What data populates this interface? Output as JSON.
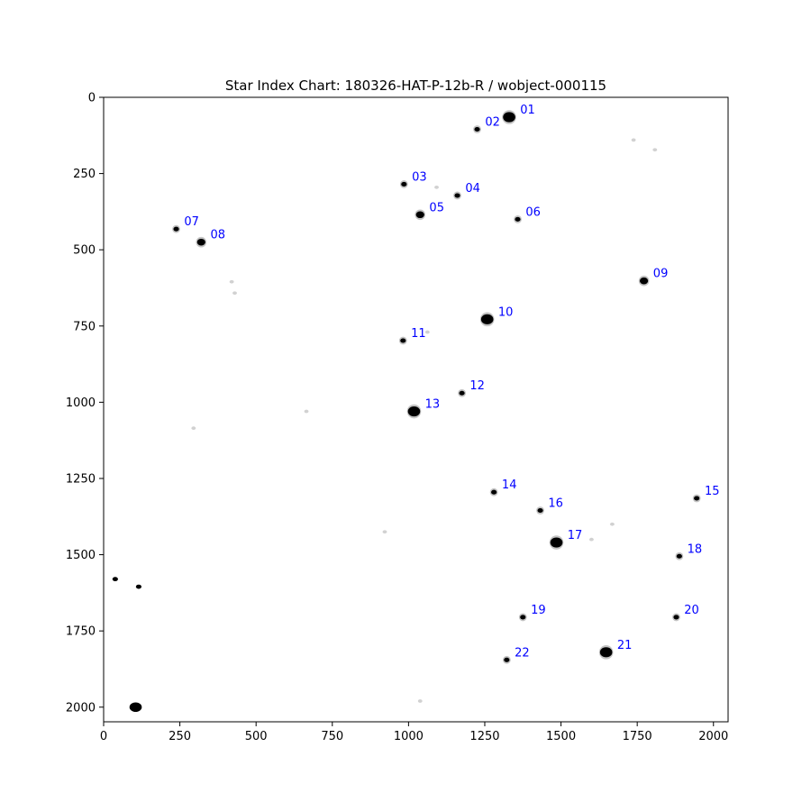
{
  "chart_data": {
    "type": "scatter",
    "title": "Star Index Chart: 180326-HAT-P-12b-R / wobject-000115",
    "xlabel": "",
    "ylabel": "",
    "xlim": [
      0,
      2048
    ],
    "ylim": [
      2048,
      0
    ],
    "y_inverted": true,
    "grid": false,
    "colors": {
      "label": "#0000ff",
      "star": "#000000",
      "background": "#ffffff",
      "faint": "#9a9a9a"
    },
    "x_ticks": [
      0,
      250,
      500,
      750,
      1000,
      1250,
      1500,
      1750,
      2000
    ],
    "y_ticks": [
      0,
      250,
      500,
      750,
      1000,
      1250,
      1500,
      1750,
      2000
    ],
    "x_tick_labels": [
      "0",
      "250",
      "500",
      "750",
      "1000",
      "1250",
      "1500",
      "1750",
      "2000"
    ],
    "y_tick_labels": [
      "0",
      "250",
      "500",
      "750",
      "1000",
      "1250",
      "1500",
      "1750",
      "2000"
    ],
    "stars": [
      {
        "label": "01",
        "x": 1330,
        "y": 65,
        "mag": 3
      },
      {
        "label": "02",
        "x": 1225,
        "y": 105,
        "mag": 1
      },
      {
        "label": "03",
        "x": 985,
        "y": 285,
        "mag": 1
      },
      {
        "label": "04",
        "x": 1160,
        "y": 322,
        "mag": 1
      },
      {
        "label": "05",
        "x": 1038,
        "y": 385,
        "mag": 2
      },
      {
        "label": "06",
        "x": 1358,
        "y": 400,
        "mag": 1
      },
      {
        "label": "07",
        "x": 238,
        "y": 432,
        "mag": 1
      },
      {
        "label": "08",
        "x": 320,
        "y": 475,
        "mag": 2
      },
      {
        "label": "09",
        "x": 1772,
        "y": 602,
        "mag": 2
      },
      {
        "label": "10",
        "x": 1258,
        "y": 728,
        "mag": 3
      },
      {
        "label": "11",
        "x": 982,
        "y": 798,
        "mag": 1
      },
      {
        "label": "12",
        "x": 1175,
        "y": 970,
        "mag": 1
      },
      {
        "label": "13",
        "x": 1018,
        "y": 1030,
        "mag": 3
      },
      {
        "label": "14",
        "x": 1280,
        "y": 1295,
        "mag": 1
      },
      {
        "label": "15",
        "x": 1945,
        "y": 1315,
        "mag": 1
      },
      {
        "label": "16",
        "x": 1432,
        "y": 1355,
        "mag": 1
      },
      {
        "label": "17",
        "x": 1485,
        "y": 1460,
        "mag": 3
      },
      {
        "label": "18",
        "x": 1888,
        "y": 1505,
        "mag": 1
      },
      {
        "label": "19",
        "x": 1375,
        "y": 1705,
        "mag": 1
      },
      {
        "label": "20",
        "x": 1878,
        "y": 1705,
        "mag": 1
      },
      {
        "label": "21",
        "x": 1648,
        "y": 1820,
        "mag": 3
      },
      {
        "label": "22",
        "x": 1322,
        "y": 1845,
        "mag": 1
      }
    ],
    "unlabeled_stars": [
      {
        "x": 105,
        "y": 2000,
        "mag": 3
      },
      {
        "x": 38,
        "y": 1580,
        "mag": 1
      },
      {
        "x": 115,
        "y": 1605,
        "mag": 1
      },
      {
        "x": 922,
        "y": 1425,
        "mag": 0
      },
      {
        "x": 1038,
        "y": 1980,
        "mag": 0
      },
      {
        "x": 1738,
        "y": 140,
        "mag": 0
      },
      {
        "x": 1092,
        "y": 295,
        "mag": 0
      },
      {
        "x": 1062,
        "y": 770,
        "mag": 0
      },
      {
        "x": 665,
        "y": 1030,
        "mag": 0
      },
      {
        "x": 295,
        "y": 1085,
        "mag": 0
      },
      {
        "x": 420,
        "y": 605,
        "mag": 0
      },
      {
        "x": 430,
        "y": 642,
        "mag": 0
      },
      {
        "x": 1600,
        "y": 1450,
        "mag": 0
      },
      {
        "x": 1808,
        "y": 172,
        "mag": 0
      },
      {
        "x": 1668,
        "y": 1400,
        "mag": 0
      }
    ]
  }
}
